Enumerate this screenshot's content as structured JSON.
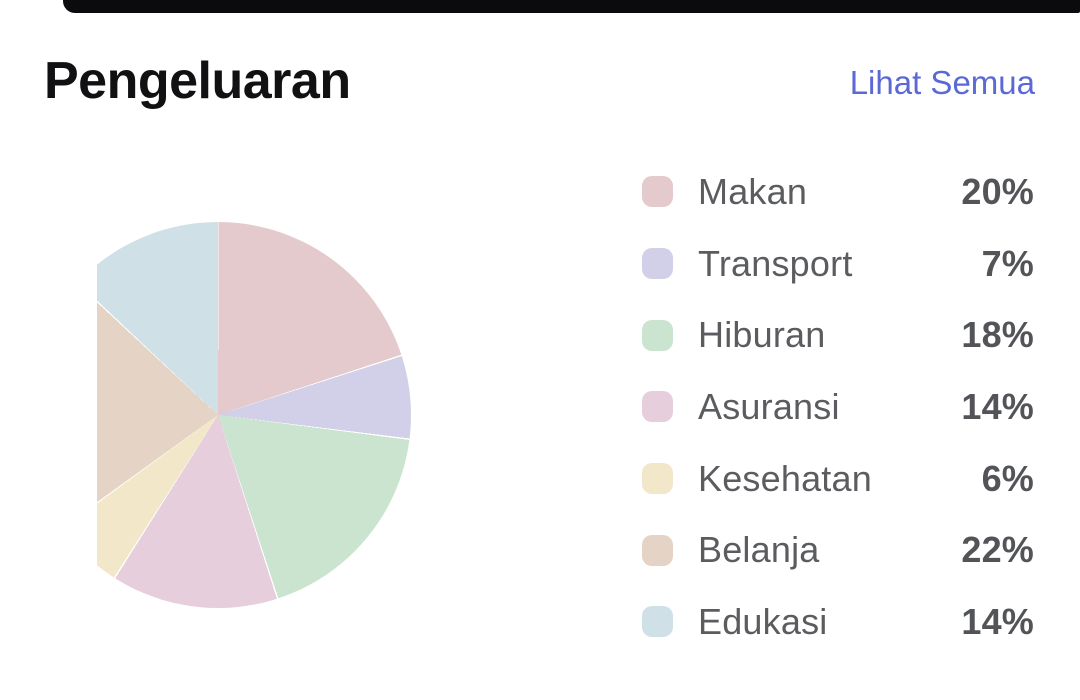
{
  "header": {
    "title": "Pengeluaran",
    "see_all_label": "Lihat Semua"
  },
  "colors": {
    "background": "#ffffff",
    "top_edge": "#0b0b0d",
    "title_text": "#111113",
    "link_text": "#5a69d6",
    "legend_label_text": "#5a5c5f",
    "legend_value_text": "#525458"
  },
  "chart_data": {
    "type": "pie",
    "title": "Pengeluaran",
    "unit": "%",
    "legend_position": "right",
    "rotation": "clockwise-from-12-oclock",
    "clipped_left_edge": true,
    "series": [
      {
        "label": "Makan",
        "value": 20,
        "color": "#e5cacd"
      },
      {
        "label": "Transport",
        "value": 7,
        "color": "#d2cfe9"
      },
      {
        "label": "Hiburan",
        "value": 18,
        "color": "#cbe4cf"
      },
      {
        "label": "Asuransi",
        "value": 14,
        "color": "#e6cedd"
      },
      {
        "label": "Kesehatan",
        "value": 6,
        "color": "#f3e7ca"
      },
      {
        "label": "Belanja",
        "value": 22,
        "color": "#e5d4c5"
      },
      {
        "label": "Edukasi",
        "value": 14,
        "color": "#cfe1e6"
      }
    ]
  }
}
